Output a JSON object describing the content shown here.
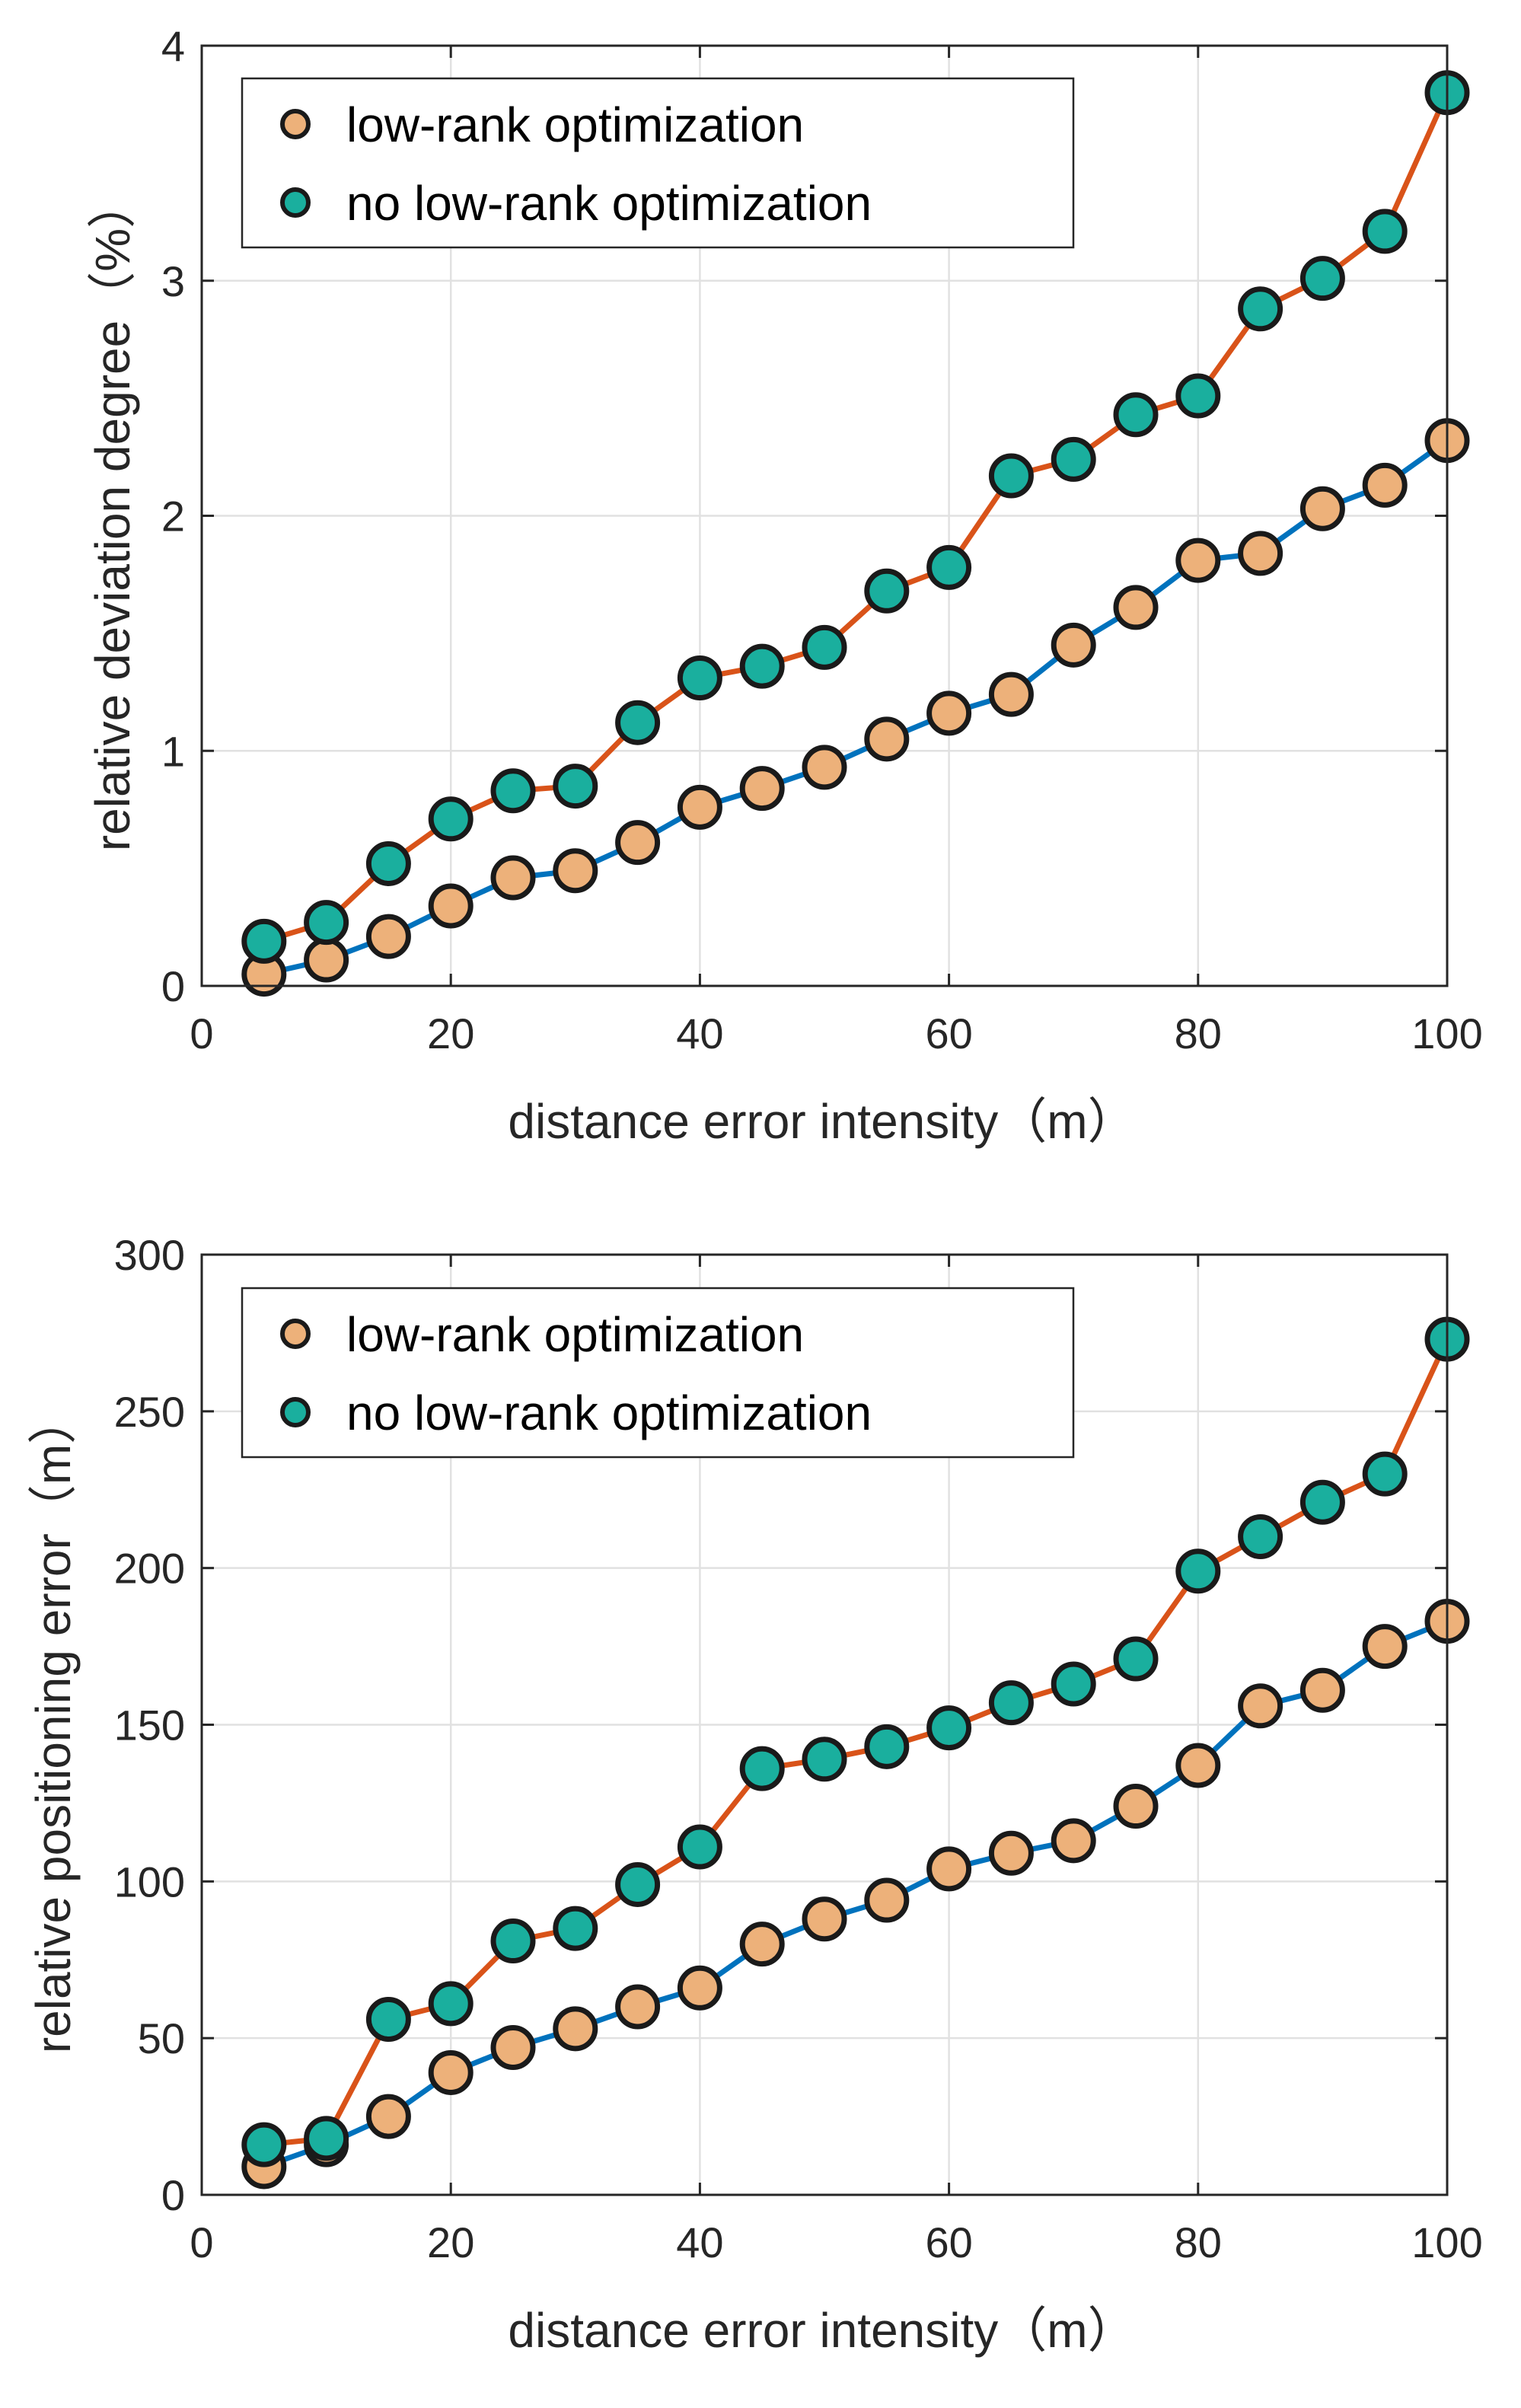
{
  "chart_data": [
    {
      "type": "line",
      "xlabel": "distance error intensity（m）",
      "ylabel": "relative deviation degree（%）",
      "xlim": [
        0,
        100
      ],
      "ylim": [
        0,
        4
      ],
      "xticks": [
        0,
        20,
        40,
        60,
        80,
        100
      ],
      "yticks": [
        0,
        1,
        2,
        3,
        4
      ],
      "grid": true,
      "legend_position": "top-left",
      "x": [
        5,
        10,
        15,
        20,
        25,
        30,
        35,
        40,
        45,
        50,
        55,
        60,
        65,
        70,
        75,
        80,
        85,
        90,
        95,
        100
      ],
      "series": [
        {
          "name": "low-rank optimization",
          "line_color": "#0072BD",
          "marker_color": "#EDB17A",
          "values": [
            0.05,
            0.11,
            0.21,
            0.34,
            0.46,
            0.49,
            0.61,
            0.76,
            0.84,
            0.93,
            1.05,
            1.16,
            1.24,
            1.45,
            1.61,
            1.81,
            1.84,
            2.03,
            2.13,
            2.32
          ]
        },
        {
          "name": "no low-rank optimization",
          "line_color": "#D95319",
          "marker_color": "#1AAF9E",
          "values": [
            0.19,
            0.27,
            0.52,
            0.71,
            0.83,
            0.85,
            1.12,
            1.31,
            1.36,
            1.44,
            1.68,
            1.78,
            2.17,
            2.24,
            2.43,
            2.51,
            2.88,
            3.01,
            3.21,
            3.8
          ]
        }
      ]
    },
    {
      "type": "line",
      "xlabel": "distance error intensity（m）",
      "ylabel": "relative positioning error（m）",
      "xlim": [
        0,
        100
      ],
      "ylim": [
        0,
        300
      ],
      "xticks": [
        0,
        20,
        40,
        60,
        80,
        100
      ],
      "yticks": [
        0,
        50,
        100,
        150,
        200,
        250,
        300
      ],
      "grid": true,
      "legend_position": "top-left",
      "x": [
        5,
        10,
        15,
        20,
        25,
        30,
        35,
        40,
        45,
        50,
        55,
        60,
        65,
        70,
        75,
        80,
        85,
        90,
        95,
        100
      ],
      "series": [
        {
          "name": "low-rank optimization",
          "line_color": "#0072BD",
          "marker_color": "#EDB17A",
          "values": [
            9,
            16,
            25,
            39,
            47,
            53,
            60,
            66,
            80,
            88,
            94,
            104,
            109,
            113,
            124,
            137,
            156,
            161,
            175,
            183
          ]
        },
        {
          "name": "no low-rank optimization",
          "line_color": "#D95319",
          "marker_color": "#1AAF9E",
          "values": [
            16,
            18,
            56,
            61,
            81,
            85,
            99,
            111,
            136,
            139,
            143,
            149,
            157,
            163,
            171,
            199,
            210,
            221,
            230,
            273
          ]
        }
      ]
    }
  ]
}
